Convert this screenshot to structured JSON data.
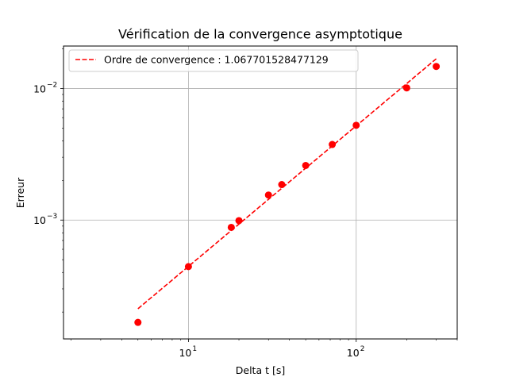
{
  "chart_data": {
    "type": "scatter",
    "title": "Vérification de la convergence asymptotique",
    "xlabel": "Delta t [s]",
    "ylabel": "Erreur",
    "xscale": "log",
    "yscale": "log",
    "xlim": [
      1.8,
      400
    ],
    "ylim": [
      0.000125,
      0.021
    ],
    "grid": true,
    "legend_position": "top-left",
    "x_ticks": [
      {
        "value": 10,
        "base": "10",
        "exp": "1"
      },
      {
        "value": 100,
        "base": "10",
        "exp": "2"
      }
    ],
    "y_ticks": [
      {
        "value": 0.001,
        "base": "10",
        "exp": "−3"
      },
      {
        "value": 0.01,
        "base": "10",
        "exp": "−2"
      }
    ],
    "series": [
      {
        "kind": "points",
        "color": "#ff0000",
        "points": [
          {
            "x": 5,
            "y": 0.000167
          },
          {
            "x": 10,
            "y": 0.000443
          },
          {
            "x": 18,
            "y": 0.00088
          },
          {
            "x": 20,
            "y": 0.00099
          },
          {
            "x": 30,
            "y": 0.00155
          },
          {
            "x": 36,
            "y": 0.00186
          },
          {
            "x": 50,
            "y": 0.0026
          },
          {
            "x": 72,
            "y": 0.00375
          },
          {
            "x": 100,
            "y": 0.00525
          },
          {
            "x": 200,
            "y": 0.0101
          },
          {
            "x": 300,
            "y": 0.0147
          }
        ]
      },
      {
        "kind": "fit",
        "name": "Ordre de convergence : 1.067701528477129",
        "color": "#ff0000",
        "style": "dashed",
        "points": [
          {
            "x": 5,
            "y": 0.000212
          },
          {
            "x": 300,
            "y": 0.0168
          }
        ]
      }
    ]
  }
}
